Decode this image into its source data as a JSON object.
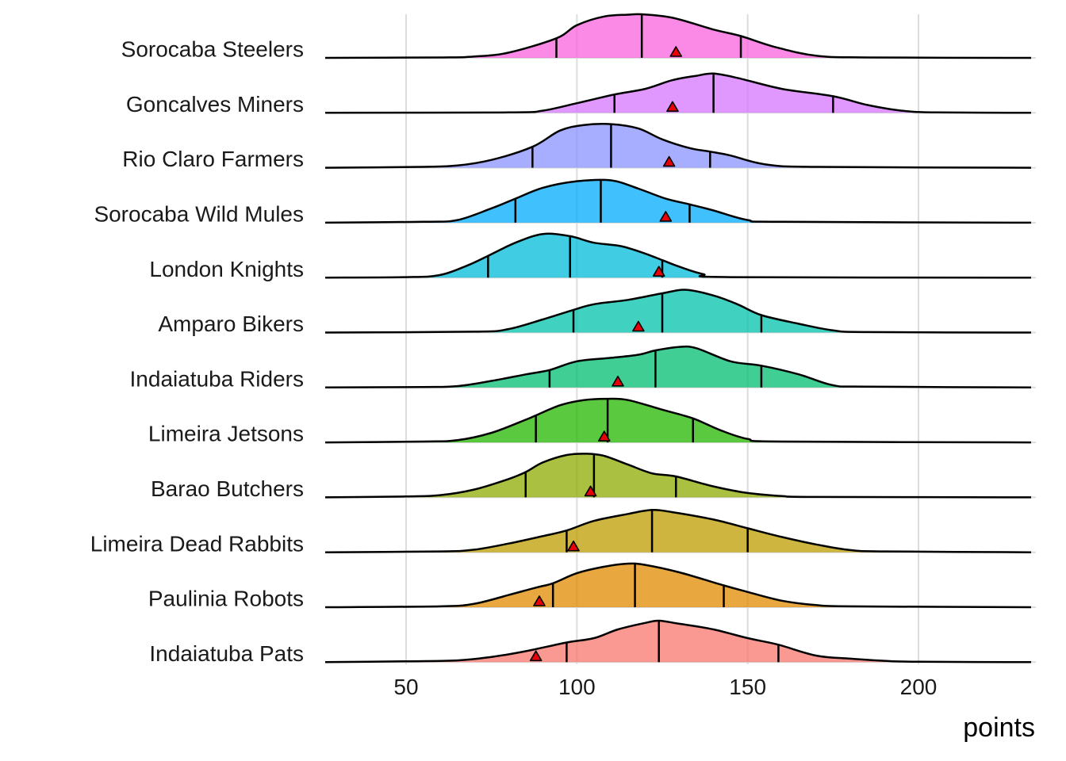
{
  "chart_data": {
    "type": "ridgeline",
    "xlabel": "points",
    "xlim": [
      25,
      233
    ],
    "x_ticks": [
      50,
      100,
      150,
      200
    ],
    "grid": "vertical major gridlines",
    "marker": "red triangle",
    "series": [
      {
        "name": "Indaiatuba Pats",
        "color": "#F8766D",
        "quantiles": [
          97,
          124,
          159
        ],
        "marker": 88,
        "density": [
          [
            25,
            0
          ],
          [
            50,
            0.02
          ],
          [
            65,
            0.04
          ],
          [
            75,
            0.12
          ],
          [
            85,
            0.25
          ],
          [
            97,
            0.45
          ],
          [
            105,
            0.55
          ],
          [
            112,
            0.75
          ],
          [
            120,
            0.9
          ],
          [
            124,
            0.95
          ],
          [
            130,
            0.88
          ],
          [
            140,
            0.75
          ],
          [
            150,
            0.55
          ],
          [
            159,
            0.4
          ],
          [
            170,
            0.15
          ],
          [
            180,
            0.08
          ],
          [
            190,
            0.03
          ],
          [
            200,
            0.01
          ],
          [
            233,
            0
          ]
        ]
      },
      {
        "name": "Paulinia Robots",
        "color": "#E18A00",
        "quantiles": [
          93,
          117,
          143
        ],
        "marker": 89,
        "density": [
          [
            25,
            0
          ],
          [
            60,
            0.02
          ],
          [
            70,
            0.08
          ],
          [
            80,
            0.28
          ],
          [
            88,
            0.45
          ],
          [
            93,
            0.55
          ],
          [
            100,
            0.78
          ],
          [
            108,
            0.93
          ],
          [
            115,
            1.0
          ],
          [
            120,
            0.97
          ],
          [
            130,
            0.8
          ],
          [
            143,
            0.5
          ],
          [
            150,
            0.35
          ],
          [
            160,
            0.15
          ],
          [
            170,
            0.05
          ],
          [
            180,
            0.02
          ],
          [
            233,
            0
          ]
        ]
      },
      {
        "name": "Limeira Dead Rabbits",
        "color": "#BE9C00",
        "quantiles": [
          97,
          122,
          150
        ],
        "marker": 99,
        "density": [
          [
            25,
            0
          ],
          [
            60,
            0.02
          ],
          [
            70,
            0.06
          ],
          [
            80,
            0.2
          ],
          [
            90,
            0.37
          ],
          [
            97,
            0.5
          ],
          [
            105,
            0.72
          ],
          [
            115,
            0.88
          ],
          [
            122,
            0.97
          ],
          [
            128,
            0.92
          ],
          [
            140,
            0.75
          ],
          [
            150,
            0.55
          ],
          [
            160,
            0.35
          ],
          [
            170,
            0.18
          ],
          [
            180,
            0.05
          ],
          [
            190,
            0.02
          ],
          [
            233,
            0
          ]
        ]
      },
      {
        "name": "Barao Butchers",
        "color": "#8CAB00",
        "quantiles": [
          85,
          105,
          129
        ],
        "marker": 104,
        "density": [
          [
            25,
            0
          ],
          [
            50,
            0.02
          ],
          [
            60,
            0.05
          ],
          [
            70,
            0.18
          ],
          [
            80,
            0.42
          ],
          [
            85,
            0.58
          ],
          [
            90,
            0.8
          ],
          [
            97,
            0.97
          ],
          [
            103,
            1.0
          ],
          [
            108,
            0.95
          ],
          [
            115,
            0.75
          ],
          [
            122,
            0.55
          ],
          [
            129,
            0.48
          ],
          [
            140,
            0.25
          ],
          [
            150,
            0.1
          ],
          [
            160,
            0.03
          ],
          [
            170,
            0.01
          ],
          [
            233,
            0
          ]
        ]
      },
      {
        "name": "Limeira Jetsons",
        "color": "#24B700",
        "quantiles": [
          88,
          109,
          134
        ],
        "marker": 108,
        "density": [
          [
            25,
            0
          ],
          [
            55,
            0.02
          ],
          [
            65,
            0.05
          ],
          [
            75,
            0.22
          ],
          [
            85,
            0.52
          ],
          [
            88,
            0.62
          ],
          [
            95,
            0.85
          ],
          [
            102,
            0.97
          ],
          [
            109,
            1.0
          ],
          [
            115,
            0.97
          ],
          [
            125,
            0.75
          ],
          [
            134,
            0.55
          ],
          [
            142,
            0.28
          ],
          [
            150,
            0.08
          ],
          [
            160,
            0.02
          ],
          [
            233,
            0
          ]
        ]
      },
      {
        "name": "Indaiatuba Riders",
        "color": "#00BE70",
        "quantiles": [
          92,
          123,
          154
        ],
        "marker": 112,
        "density": [
          [
            25,
            0
          ],
          [
            55,
            0.01
          ],
          [
            65,
            0.03
          ],
          [
            75,
            0.15
          ],
          [
            85,
            0.3
          ],
          [
            92,
            0.4
          ],
          [
            100,
            0.6
          ],
          [
            110,
            0.68
          ],
          [
            118,
            0.75
          ],
          [
            123,
            0.85
          ],
          [
            130,
            0.93
          ],
          [
            135,
            0.9
          ],
          [
            145,
            0.6
          ],
          [
            154,
            0.5
          ],
          [
            165,
            0.3
          ],
          [
            175,
            0.05
          ],
          [
            185,
            0.02
          ],
          [
            233,
            0
          ]
        ]
      },
      {
        "name": "Amparo Bikers",
        "color": "#00C1AB",
        "quantiles": [
          99,
          125,
          154
        ],
        "marker": 118,
        "density": [
          [
            25,
            0
          ],
          [
            70,
            0.02
          ],
          [
            80,
            0.08
          ],
          [
            90,
            0.3
          ],
          [
            99,
            0.52
          ],
          [
            105,
            0.65
          ],
          [
            115,
            0.75
          ],
          [
            125,
            0.9
          ],
          [
            132,
            0.98
          ],
          [
            140,
            0.85
          ],
          [
            147,
            0.65
          ],
          [
            154,
            0.4
          ],
          [
            165,
            0.2
          ],
          [
            175,
            0.05
          ],
          [
            185,
            0.01
          ],
          [
            233,
            0
          ]
        ]
      },
      {
        "name": "London Knights",
        "color": "#00BBDA",
        "quantiles": [
          74,
          98,
          125
        ],
        "marker": 124,
        "density": [
          [
            25,
            0
          ],
          [
            50,
            0.01
          ],
          [
            60,
            0.06
          ],
          [
            68,
            0.28
          ],
          [
            74,
            0.5
          ],
          [
            82,
            0.8
          ],
          [
            90,
            1.0
          ],
          [
            98,
            0.95
          ],
          [
            105,
            0.8
          ],
          [
            113,
            0.72
          ],
          [
            120,
            0.55
          ],
          [
            125,
            0.4
          ],
          [
            130,
            0.25
          ],
          [
            137,
            0.08
          ],
          [
            145,
            0.01
          ],
          [
            233,
            0
          ]
        ]
      },
      {
        "name": "Sorocaba Wild Mules",
        "color": "#00ACFC",
        "quantiles": [
          82,
          107,
          133
        ],
        "marker": 126,
        "density": [
          [
            25,
            0
          ],
          [
            55,
            0.02
          ],
          [
            65,
            0.06
          ],
          [
            75,
            0.33
          ],
          [
            82,
            0.55
          ],
          [
            90,
            0.8
          ],
          [
            100,
            0.95
          ],
          [
            110,
            0.97
          ],
          [
            118,
            0.78
          ],
          [
            126,
            0.55
          ],
          [
            133,
            0.42
          ],
          [
            140,
            0.28
          ],
          [
            150,
            0.06
          ],
          [
            160,
            0.02
          ],
          [
            233,
            0
          ]
        ]
      },
      {
        "name": "Rio Claro Farmers",
        "color": "#8B93FF",
        "quantiles": [
          87,
          110,
          139
        ],
        "marker": 127,
        "density": [
          [
            25,
            0
          ],
          [
            55,
            0.02
          ],
          [
            65,
            0.05
          ],
          [
            75,
            0.18
          ],
          [
            87,
            0.48
          ],
          [
            95,
            0.85
          ],
          [
            102,
            0.98
          ],
          [
            110,
            1.0
          ],
          [
            118,
            0.9
          ],
          [
            125,
            0.65
          ],
          [
            133,
            0.45
          ],
          [
            139,
            0.37
          ],
          [
            145,
            0.28
          ],
          [
            155,
            0.08
          ],
          [
            170,
            0.02
          ],
          [
            233,
            0
          ]
        ]
      },
      {
        "name": "Goncalves Miners",
        "color": "#D575FE",
        "quantiles": [
          111,
          140,
          175
        ],
        "marker": 128,
        "density": [
          [
            25,
            0
          ],
          [
            80,
            0.01
          ],
          [
            90,
            0.05
          ],
          [
            100,
            0.22
          ],
          [
            111,
            0.42
          ],
          [
            120,
            0.55
          ],
          [
            128,
            0.75
          ],
          [
            135,
            0.85
          ],
          [
            140,
            0.9
          ],
          [
            147,
            0.8
          ],
          [
            160,
            0.55
          ],
          [
            175,
            0.38
          ],
          [
            185,
            0.18
          ],
          [
            195,
            0.05
          ],
          [
            205,
            0.01
          ],
          [
            233,
            0
          ]
        ]
      },
      {
        "name": "Sorocaba Steelers",
        "color": "#F962DD",
        "quantiles": [
          94,
          119,
          148
        ],
        "marker": 129,
        "density": [
          [
            25,
            0
          ],
          [
            60,
            0.01
          ],
          [
            70,
            0.03
          ],
          [
            80,
            0.12
          ],
          [
            94,
            0.45
          ],
          [
            100,
            0.75
          ],
          [
            108,
            0.95
          ],
          [
            115,
            0.99
          ],
          [
            119,
            1.0
          ],
          [
            128,
            0.92
          ],
          [
            140,
            0.65
          ],
          [
            148,
            0.5
          ],
          [
            158,
            0.25
          ],
          [
            170,
            0.05
          ],
          [
            185,
            0.01
          ],
          [
            233,
            0
          ]
        ]
      }
    ]
  }
}
